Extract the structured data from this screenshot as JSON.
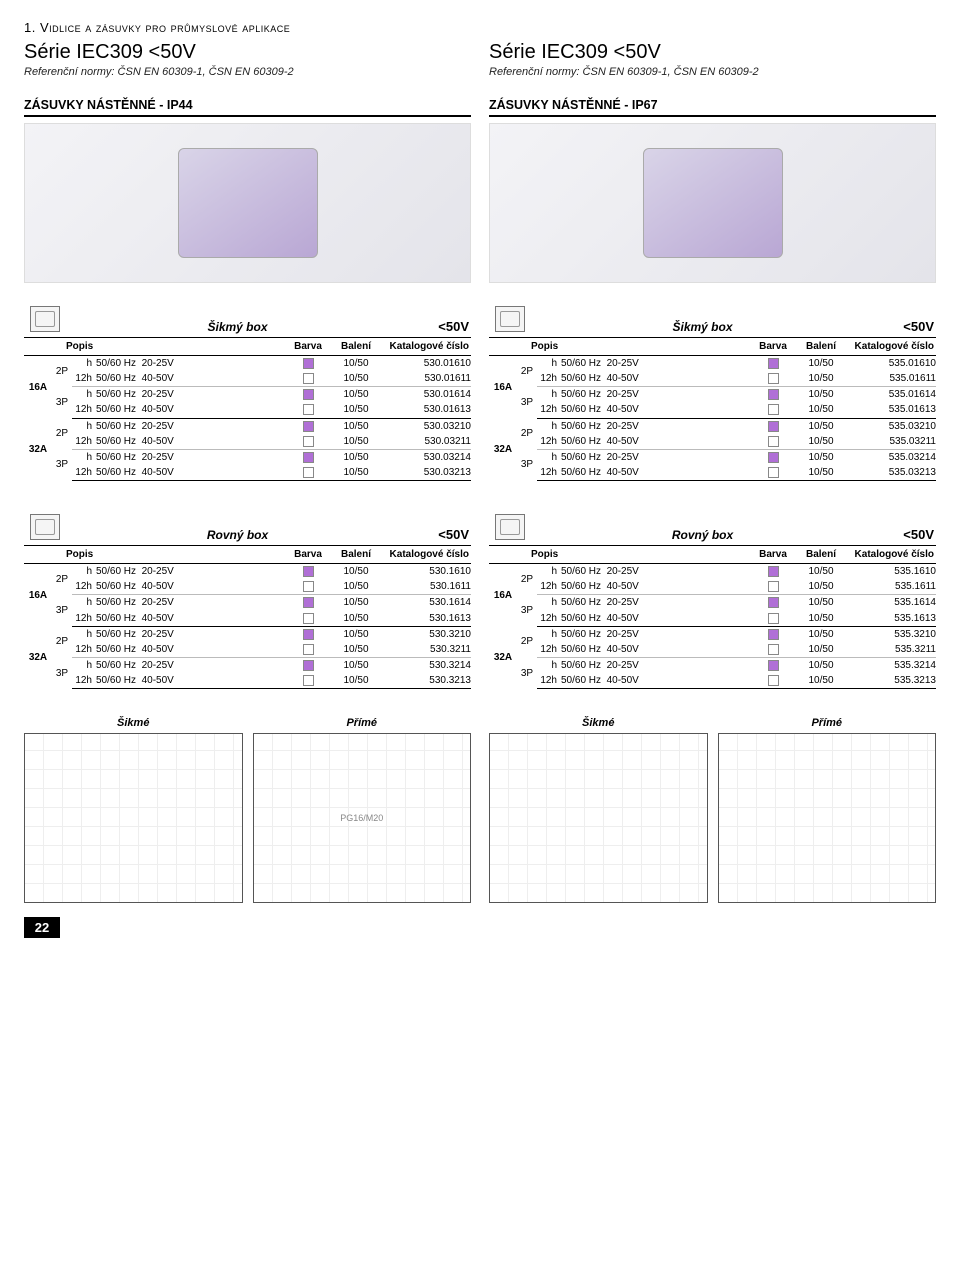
{
  "page": {
    "category_title": "1. Vidlice a zásuvky pro průmyslové aplikace",
    "page_number": "22"
  },
  "series": {
    "left": {
      "title": "Série IEC309 <50V",
      "ref": "Referenční normy: ČSN EN 60309-1, ČSN EN 60309-2"
    },
    "right": {
      "title": "Série IEC309 <50V",
      "ref": "Referenční normy: ČSN EN 60309-1, ČSN EN 60309-2"
    }
  },
  "subheads": {
    "left": "ZÁSUVKY NÁSTĚNNÉ - IP44",
    "right": "ZÁSUVKY NÁSTĚNNÉ - IP67"
  },
  "col_labels": {
    "popis": "Popis",
    "barva": "Barva",
    "baleni": "Balení",
    "kat": "Katalogové číslo"
  },
  "colors": {
    "purple": "#b06fd6",
    "white": "#ffffff"
  },
  "voltage_label": "<50V",
  "table_titles": {
    "sikmy": "Šikmý box",
    "rovny": "Rovný box"
  },
  "diagrams": {
    "sikme": "Šikmé",
    "prime": "Přímé",
    "pg_label": "PG16/M20"
  },
  "tables": {
    "t1": {
      "title_key": "sikmy",
      "groups": [
        {
          "amp": "16A",
          "poles": [
            {
              "p": "2P",
              "rows": [
                {
                  "pre": "h",
                  "hz": "50/60 Hz",
                  "v": "20-25V",
                  "c": "purple",
                  "b": "10/50",
                  "k": "530.01610"
                },
                {
                  "pre": "12h",
                  "hz": "50/60 Hz",
                  "v": "40-50V",
                  "c": "white",
                  "b": "10/50",
                  "k": "530.01611"
                }
              ]
            },
            {
              "p": "3P",
              "rows": [
                {
                  "pre": "h",
                  "hz": "50/60 Hz",
                  "v": "20-25V",
                  "c": "purple",
                  "b": "10/50",
                  "k": "530.01614"
                },
                {
                  "pre": "12h",
                  "hz": "50/60 Hz",
                  "v": "40-50V",
                  "c": "white",
                  "b": "10/50",
                  "k": "530.01613"
                }
              ]
            }
          ]
        },
        {
          "amp": "32A",
          "poles": [
            {
              "p": "2P",
              "rows": [
                {
                  "pre": "h",
                  "hz": "50/60 Hz",
                  "v": "20-25V",
                  "c": "purple",
                  "b": "10/50",
                  "k": "530.03210"
                },
                {
                  "pre": "12h",
                  "hz": "50/60 Hz",
                  "v": "40-50V",
                  "c": "white",
                  "b": "10/50",
                  "k": "530.03211"
                }
              ]
            },
            {
              "p": "3P",
              "rows": [
                {
                  "pre": "h",
                  "hz": "50/60 Hz",
                  "v": "20-25V",
                  "c": "purple",
                  "b": "10/50",
                  "k": "530.03214"
                },
                {
                  "pre": "12h",
                  "hz": "50/60 Hz",
                  "v": "40-50V",
                  "c": "white",
                  "b": "10/50",
                  "k": "530.03213"
                }
              ]
            }
          ]
        }
      ]
    },
    "t2": {
      "title_key": "sikmy",
      "groups": [
        {
          "amp": "16A",
          "poles": [
            {
              "p": "2P",
              "rows": [
                {
                  "pre": "h",
                  "hz": "50/60 Hz",
                  "v": "20-25V",
                  "c": "purple",
                  "b": "10/50",
                  "k": "535.01610"
                },
                {
                  "pre": "12h",
                  "hz": "50/60 Hz",
                  "v": "40-50V",
                  "c": "white",
                  "b": "10/50",
                  "k": "535.01611"
                }
              ]
            },
            {
              "p": "3P",
              "rows": [
                {
                  "pre": "h",
                  "hz": "50/60 Hz",
                  "v": "20-25V",
                  "c": "purple",
                  "b": "10/50",
                  "k": "535.01614"
                },
                {
                  "pre": "12h",
                  "hz": "50/60 Hz",
                  "v": "40-50V",
                  "c": "white",
                  "b": "10/50",
                  "k": "535.01613"
                }
              ]
            }
          ]
        },
        {
          "amp": "32A",
          "poles": [
            {
              "p": "2P",
              "rows": [
                {
                  "pre": "h",
                  "hz": "50/60 Hz",
                  "v": "20-25V",
                  "c": "purple",
                  "b": "10/50",
                  "k": "535.03210"
                },
                {
                  "pre": "12h",
                  "hz": "50/60 Hz",
                  "v": "40-50V",
                  "c": "white",
                  "b": "10/50",
                  "k": "535.03211"
                }
              ]
            },
            {
              "p": "3P",
              "rows": [
                {
                  "pre": "h",
                  "hz": "50/60 Hz",
                  "v": "20-25V",
                  "c": "purple",
                  "b": "10/50",
                  "k": "535.03214"
                },
                {
                  "pre": "12h",
                  "hz": "50/60 Hz",
                  "v": "40-50V",
                  "c": "white",
                  "b": "10/50",
                  "k": "535.03213"
                }
              ]
            }
          ]
        }
      ]
    },
    "t3": {
      "title_key": "rovny",
      "groups": [
        {
          "amp": "16A",
          "poles": [
            {
              "p": "2P",
              "rows": [
                {
                  "pre": "h",
                  "hz": "50/60 Hz",
                  "v": "20-25V",
                  "c": "purple",
                  "b": "10/50",
                  "k": "530.1610"
                },
                {
                  "pre": "12h",
                  "hz": "50/60 Hz",
                  "v": "40-50V",
                  "c": "white",
                  "b": "10/50",
                  "k": "530.1611"
                }
              ]
            },
            {
              "p": "3P",
              "rows": [
                {
                  "pre": "h",
                  "hz": "50/60 Hz",
                  "v": "20-25V",
                  "c": "purple",
                  "b": "10/50",
                  "k": "530.1614"
                },
                {
                  "pre": "12h",
                  "hz": "50/60 Hz",
                  "v": "40-50V",
                  "c": "white",
                  "b": "10/50",
                  "k": "530.1613"
                }
              ]
            }
          ]
        },
        {
          "amp": "32A",
          "poles": [
            {
              "p": "2P",
              "rows": [
                {
                  "pre": "h",
                  "hz": "50/60 Hz",
                  "v": "20-25V",
                  "c": "purple",
                  "b": "10/50",
                  "k": "530.3210"
                },
                {
                  "pre": "12h",
                  "hz": "50/60 Hz",
                  "v": "40-50V",
                  "c": "white",
                  "b": "10/50",
                  "k": "530.3211"
                }
              ]
            },
            {
              "p": "3P",
              "rows": [
                {
                  "pre": "h",
                  "hz": "50/60 Hz",
                  "v": "20-25V",
                  "c": "purple",
                  "b": "10/50",
                  "k": "530.3214"
                },
                {
                  "pre": "12h",
                  "hz": "50/60 Hz",
                  "v": "40-50V",
                  "c": "white",
                  "b": "10/50",
                  "k": "530.3213"
                }
              ]
            }
          ]
        }
      ]
    },
    "t4": {
      "title_key": "rovny",
      "groups": [
        {
          "amp": "16A",
          "poles": [
            {
              "p": "2P",
              "rows": [
                {
                  "pre": "h",
                  "hz": "50/60 Hz",
                  "v": "20-25V",
                  "c": "purple",
                  "b": "10/50",
                  "k": "535.1610"
                },
                {
                  "pre": "12h",
                  "hz": "50/60 Hz",
                  "v": "40-50V",
                  "c": "white",
                  "b": "10/50",
                  "k": "535.1611"
                }
              ]
            },
            {
              "p": "3P",
              "rows": [
                {
                  "pre": "h",
                  "hz": "50/60 Hz",
                  "v": "20-25V",
                  "c": "purple",
                  "b": "10/50",
                  "k": "535.1614"
                },
                {
                  "pre": "12h",
                  "hz": "50/60 Hz",
                  "v": "40-50V",
                  "c": "white",
                  "b": "10/50",
                  "k": "535.1613"
                }
              ]
            }
          ]
        },
        {
          "amp": "32A",
          "poles": [
            {
              "p": "2P",
              "rows": [
                {
                  "pre": "h",
                  "hz": "50/60 Hz",
                  "v": "20-25V",
                  "c": "purple",
                  "b": "10/50",
                  "k": "535.3210"
                },
                {
                  "pre": "12h",
                  "hz": "50/60 Hz",
                  "v": "40-50V",
                  "c": "white",
                  "b": "10/50",
                  "k": "535.3211"
                }
              ]
            },
            {
              "p": "3P",
              "rows": [
                {
                  "pre": "h",
                  "hz": "50/60 Hz",
                  "v": "20-25V",
                  "c": "purple",
                  "b": "10/50",
                  "k": "535.3214"
                },
                {
                  "pre": "12h",
                  "hz": "50/60 Hz",
                  "v": "40-50V",
                  "c": "white",
                  "b": "10/50",
                  "k": "535.3213"
                }
              ]
            }
          ]
        }
      ]
    }
  }
}
